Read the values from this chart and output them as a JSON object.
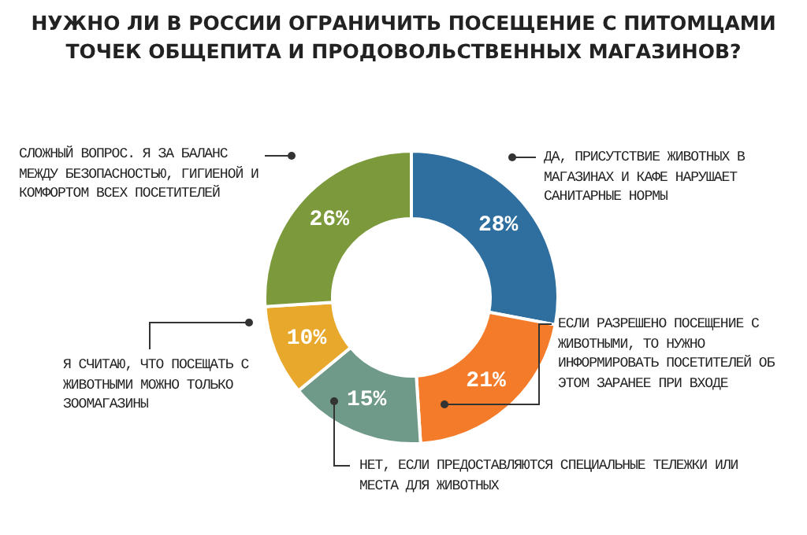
{
  "chart_data": {
    "type": "donut",
    "title": "НУЖНО ЛИ В РОССИИ ОГРАНИЧИТЬ ПОСЕЩЕНИЕ С ПИТОМЦАМИ ТОЧЕК ОБЩЕПИТА И ПРОДОВОЛЬСТВЕННЫХ МАГАЗИНОВ?",
    "categories": [
      "ДА, ПРИСУТСТВИЕ ЖИВОТНЫХ В МАГАЗИНАХ И КАФЕ НАРУШАЕТ САНИТАРНЫЕ НОРМЫ",
      "ЕСЛИ РАЗРЕШЕНО ПОСЕЩЕНИЕ С ЖИВОТНЫМИ, ТО НУЖНО ИНФОРМИРОВАТЬ ПОСЕТИТЕЛЕЙ ОБ ЭТОМ ЗАРАНЕЕ ПРИ ВХОДЕ",
      "НЕТ, ЕСЛИ ПРЕДОСТАВЛЯЮТСЯ СПЕЦИАЛЬНЫЕ ТЕЛЕЖКИ ИЛИ МЕСТА ДЛЯ ЖИВОТНЫХ",
      "Я СЧИТАЮ, ЧТО ПОСЕЩАТЬ С ЖИВОТНЫМИ МОЖНО ТОЛЬКО ЗООМАГАЗИНЫ",
      "СЛОЖНЫЙ ВОПРОС. Я ЗА БАЛАНС МЕЖДУ БЕЗОПАСНОСТЬЮ, ГИГИЕНОЙ И КОМФОРТОМ ВСЕХ ПОСЕТИТЕЛЕЙ"
    ],
    "values": [
      28,
      21,
      15,
      10,
      26
    ],
    "value_labels": [
      "28%",
      "21%",
      "15%",
      "10%",
      "26%"
    ],
    "colors": [
      "#2f6f9f",
      "#f47b2a",
      "#6f9988",
      "#e8a82c",
      "#7c9a3b"
    ],
    "legend": false
  }
}
